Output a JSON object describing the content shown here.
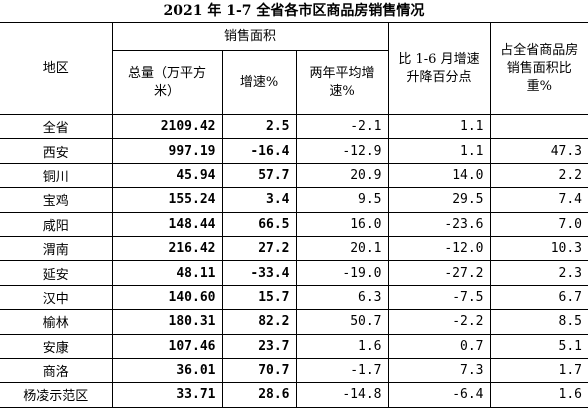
{
  "title": "2021 年 1-7 全省各市区商品房销售情况",
  "table": {
    "header": {
      "region": "地区",
      "sales_area": "销售面积",
      "total": "总量（万平方米）",
      "growth": "增速%",
      "two_year": "两年平均增速%",
      "change": "比 1-6 月增速升降百分点",
      "share": "占全省商品房销售面积比重%"
    },
    "rows": [
      [
        "全省",
        "2109.42",
        "2.5",
        "-2.1",
        "1.1"
      ],
      [
        "西安",
        "997.19",
        "-16.4",
        "-12.9",
        "1.1",
        "47.3"
      ],
      [
        "铜川",
        "45.94",
        "57.7",
        "20.9",
        "14.0",
        "2.2"
      ],
      [
        "宝鸡",
        "155.24",
        "3.4",
        "9.5",
        "29.5",
        "7.4"
      ],
      [
        "咸阳",
        "148.44",
        "66.5",
        "16.0",
        "-23.6",
        "7.0"
      ],
      [
        "渭南",
        "216.42",
        "27.2",
        "20.1",
        "-12.0",
        "10.3"
      ],
      [
        "延安",
        "48.11",
        "-33.4",
        "-19.0",
        "-27.2",
        "2.3"
      ],
      [
        "汉中",
        "140.60",
        "15.7",
        "6.3",
        "-7.5",
        "6.7"
      ],
      [
        "榆林",
        "180.31",
        "82.2",
        "50.7",
        "-2.2",
        "8.5"
      ],
      [
        "安康",
        "107.46",
        "23.7",
        "1.6",
        "0.7",
        "5.1"
      ],
      [
        "商洛",
        "36.01",
        "70.7",
        "-1.7",
        "7.3",
        "1.7"
      ],
      [
        "杨凌示范区",
        "33.71",
        "28.6",
        "-14.8",
        "-6.4",
        "1.6"
      ]
    ]
  }
}
